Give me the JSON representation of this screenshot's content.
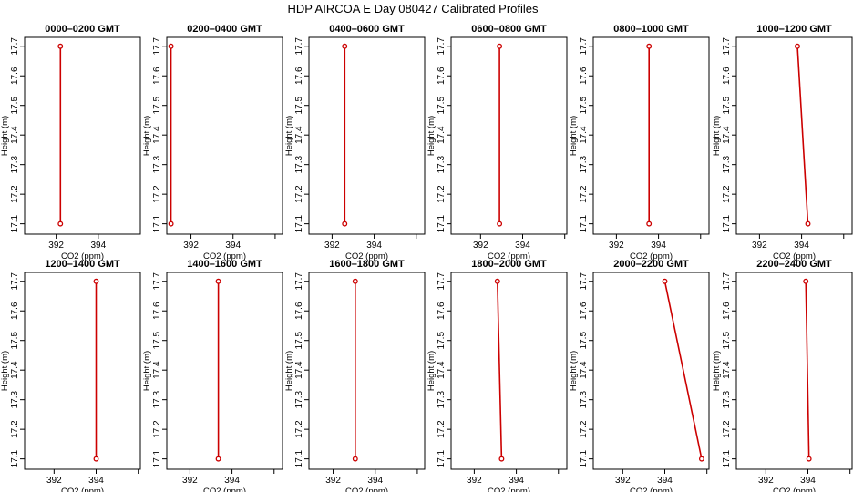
{
  "figure_title": "HDP  AIRCOA E  Day 080427  Calibrated Profiles",
  "chart_data": [
    {
      "type": "line",
      "title": "0000–0200 GMT",
      "xlabel": "CO2 (ppm)",
      "ylabel": "Height (m)",
      "xlim": [
        390.5,
        396.0
      ],
      "ylim": [
        17.065,
        17.73
      ],
      "xticks": [
        "392",
        "394"
      ],
      "yticks": [
        "17.1",
        "17.2",
        "17.3",
        "17.4",
        "17.5",
        "17.6",
        "17.7"
      ],
      "x": [
        392.2,
        392.2
      ],
      "y": [
        17.1,
        17.7
      ],
      "color": "#cc0000"
    },
    {
      "type": "line",
      "title": "0200–0400 GMT",
      "xlabel": "CO2 (ppm)",
      "ylabel": "Height (m)",
      "xlim": [
        390.85,
        396.35
      ],
      "ylim": [
        17.065,
        17.73
      ],
      "xticks": [
        "392",
        "394"
      ],
      "yticks": [
        "17.1",
        "17.2",
        "17.3",
        "17.4",
        "17.5",
        "17.6",
        "17.7"
      ],
      "x": [
        391.05,
        391.05
      ],
      "y": [
        17.1,
        17.7
      ],
      "color": "#cc0000"
    },
    {
      "type": "line",
      "title": "0400–0600 GMT",
      "xlabel": "CO2 (ppm)",
      "ylabel": "Height (m)",
      "xlim": [
        390.9,
        396.4
      ],
      "ylim": [
        17.065,
        17.73
      ],
      "xticks": [
        "392",
        "394"
      ],
      "yticks": [
        "17.1",
        "17.2",
        "17.3",
        "17.4",
        "17.5",
        "17.6",
        "17.7"
      ],
      "x": [
        392.6,
        392.6
      ],
      "y": [
        17.1,
        17.7
      ],
      "color": "#cc0000"
    },
    {
      "type": "line",
      "title": "0600–0800 GMT",
      "xlabel": "CO2 (ppm)",
      "ylabel": "Height (m)",
      "xlim": [
        390.6,
        396.1
      ],
      "ylim": [
        17.065,
        17.73
      ],
      "xticks": [
        "392",
        "394"
      ],
      "yticks": [
        "17.1",
        "17.2",
        "17.3",
        "17.4",
        "17.5",
        "17.6",
        "17.7"
      ],
      "x": [
        392.9,
        392.9
      ],
      "y": [
        17.1,
        17.7
      ],
      "color": "#cc0000"
    },
    {
      "type": "line",
      "title": "0800–1000 GMT",
      "xlabel": "CO2 (ppm)",
      "ylabel": "Height (m)",
      "xlim": [
        390.9,
        396.4
      ],
      "ylim": [
        17.065,
        17.73
      ],
      "xticks": [
        "392",
        "394"
      ],
      "yticks": [
        "17.1",
        "17.2",
        "17.3",
        "17.4",
        "17.5",
        "17.6",
        "17.7"
      ],
      "x": [
        393.55,
        393.55
      ],
      "y": [
        17.1,
        17.7
      ],
      "color": "#cc0000"
    },
    {
      "type": "line",
      "title": "1000–1200 GMT",
      "xlabel": "CO2 (ppm)",
      "ylabel": "Height (m)",
      "xlim": [
        390.9,
        396.4
      ],
      "ylim": [
        17.065,
        17.73
      ],
      "xticks": [
        "392",
        "394"
      ],
      "yticks": [
        "17.1",
        "17.2",
        "17.3",
        "17.4",
        "17.5",
        "17.6",
        "17.7"
      ],
      "x": [
        394.3,
        393.8
      ],
      "y": [
        17.1,
        17.7
      ],
      "color": "#cc0000"
    },
    {
      "type": "line",
      "title": "1200–1400 GMT",
      "xlabel": "CO2 (ppm)",
      "ylabel": "Height (m)",
      "xlim": [
        390.6,
        396.1
      ],
      "ylim": [
        17.065,
        17.73
      ],
      "xticks": [
        "392",
        "394"
      ],
      "yticks": [
        "17.1",
        "17.2",
        "17.3",
        "17.4",
        "17.5",
        "17.6",
        "17.7"
      ],
      "x": [
        394.0,
        394.0
      ],
      "y": [
        17.1,
        17.7
      ],
      "color": "#cc0000"
    },
    {
      "type": "line",
      "title": "1400–1600 GMT",
      "xlabel": "CO2 (ppm)",
      "ylabel": "Height (m)",
      "xlim": [
        390.9,
        396.4
      ],
      "ylim": [
        17.065,
        17.73
      ],
      "xticks": [
        "392",
        "394"
      ],
      "yticks": [
        "17.1",
        "17.2",
        "17.3",
        "17.4",
        "17.5",
        "17.6",
        "17.7"
      ],
      "x": [
        393.35,
        393.35
      ],
      "y": [
        17.1,
        17.7
      ],
      "color": "#cc0000"
    },
    {
      "type": "line",
      "title": "1600–1800 GMT",
      "xlabel": "CO2 (ppm)",
      "ylabel": "Height (m)",
      "xlim": [
        390.85,
        396.35
      ],
      "ylim": [
        17.065,
        17.73
      ],
      "xticks": [
        "392",
        "394"
      ],
      "yticks": [
        "17.1",
        "17.2",
        "17.3",
        "17.4",
        "17.5",
        "17.6",
        "17.7"
      ],
      "x": [
        393.05,
        393.05
      ],
      "y": [
        17.1,
        17.7
      ],
      "color": "#cc0000"
    },
    {
      "type": "line",
      "title": "1800–2000 GMT",
      "xlabel": "CO2 (ppm)",
      "ylabel": "Height (m)",
      "xlim": [
        390.9,
        396.4
      ],
      "ylim": [
        17.065,
        17.73
      ],
      "xticks": [
        "392",
        "394"
      ],
      "yticks": [
        "17.1",
        "17.2",
        "17.3",
        "17.4",
        "17.5",
        "17.6",
        "17.7"
      ],
      "x": [
        393.3,
        393.1
      ],
      "y": [
        17.1,
        17.7
      ],
      "color": "#cc0000"
    },
    {
      "type": "line",
      "title": "2000–2200 GMT",
      "xlabel": "CO2 (ppm)",
      "ylabel": "Height (m)",
      "xlim": [
        390.6,
        396.1
      ],
      "ylim": [
        17.065,
        17.73
      ],
      "xticks": [
        "392",
        "394"
      ],
      "yticks": [
        "17.1",
        "17.2",
        "17.3",
        "17.4",
        "17.5",
        "17.6",
        "17.7"
      ],
      "x": [
        395.75,
        394.0
      ],
      "y": [
        17.1,
        17.7
      ],
      "color": "#cc0000"
    },
    {
      "type": "line",
      "title": "2200–2400 GMT",
      "xlabel": "CO2 (ppm)",
      "ylabel": "Height (m)",
      "xlim": [
        390.6,
        396.1
      ],
      "ylim": [
        17.065,
        17.73
      ],
      "xticks": [
        "392",
        "394"
      ],
      "yticks": [
        "17.1",
        "17.2",
        "17.3",
        "17.4",
        "17.5",
        "17.6",
        "17.7"
      ],
      "x": [
        394.05,
        393.9
      ],
      "y": [
        17.1,
        17.7
      ],
      "color": "#cc0000"
    }
  ]
}
